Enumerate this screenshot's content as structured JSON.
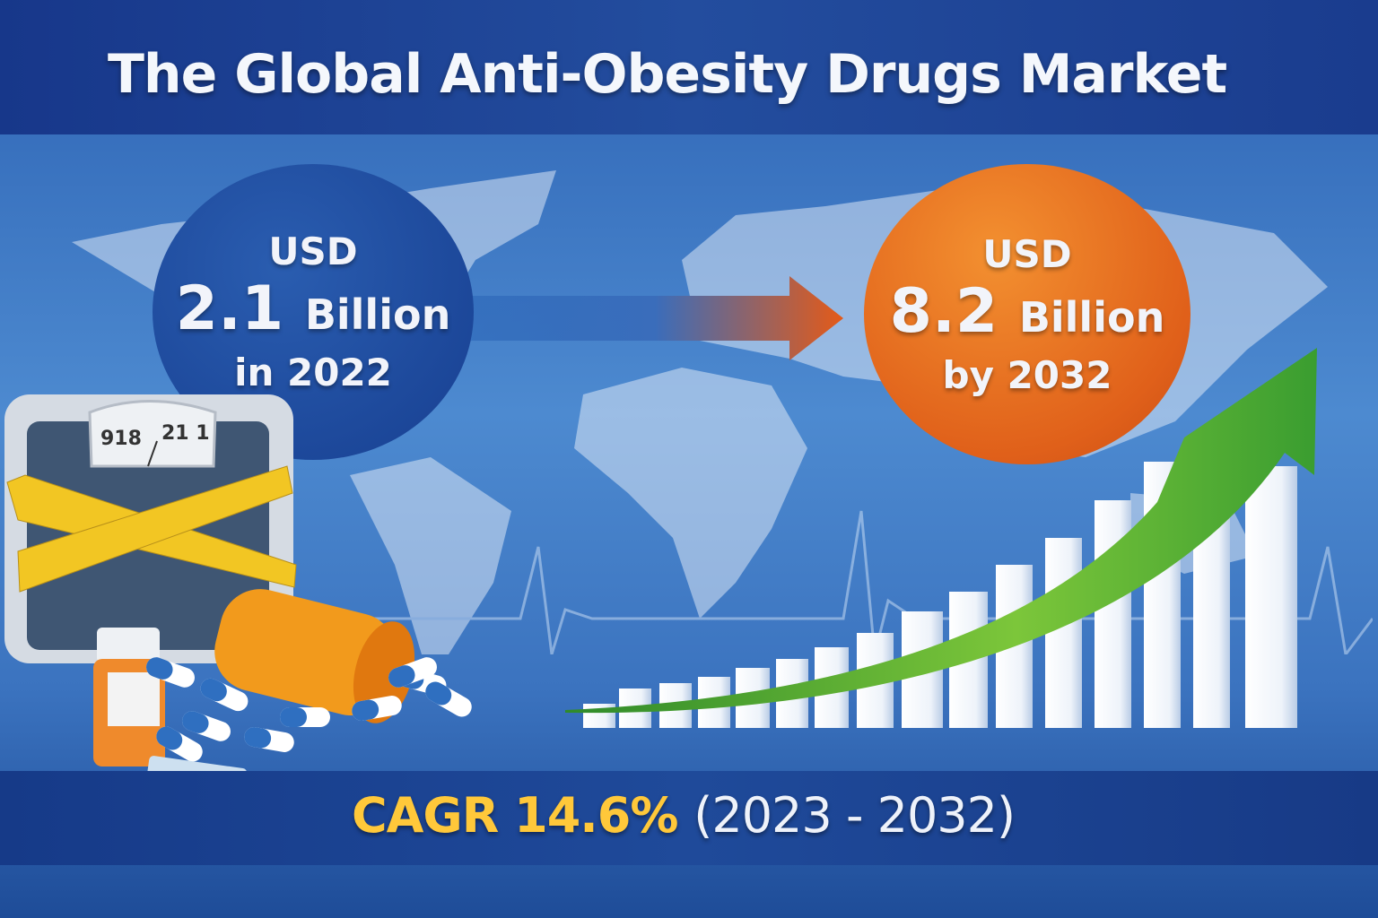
{
  "title": "The Global Anti-Obesity Drugs Market",
  "start_value": {
    "currency": "USD",
    "amount": "2.1",
    "unit": "Billion",
    "period": "in 2022"
  },
  "end_value": {
    "currency": "USD",
    "amount": "8.2",
    "unit": "Billion",
    "period": "by 2032"
  },
  "cagr": {
    "label": "CAGR 14.6%",
    "period": "(2023 - 2032)"
  },
  "scale_readout": {
    "left": "918",
    "right": "21 1"
  },
  "colors": {
    "title_band": "#1a3c8e",
    "start_circle": "#1f4fa0",
    "end_circle": "#e86a1e",
    "cagr_highlight": "#ffc83a",
    "growth_arrow": "#4caf32"
  }
}
